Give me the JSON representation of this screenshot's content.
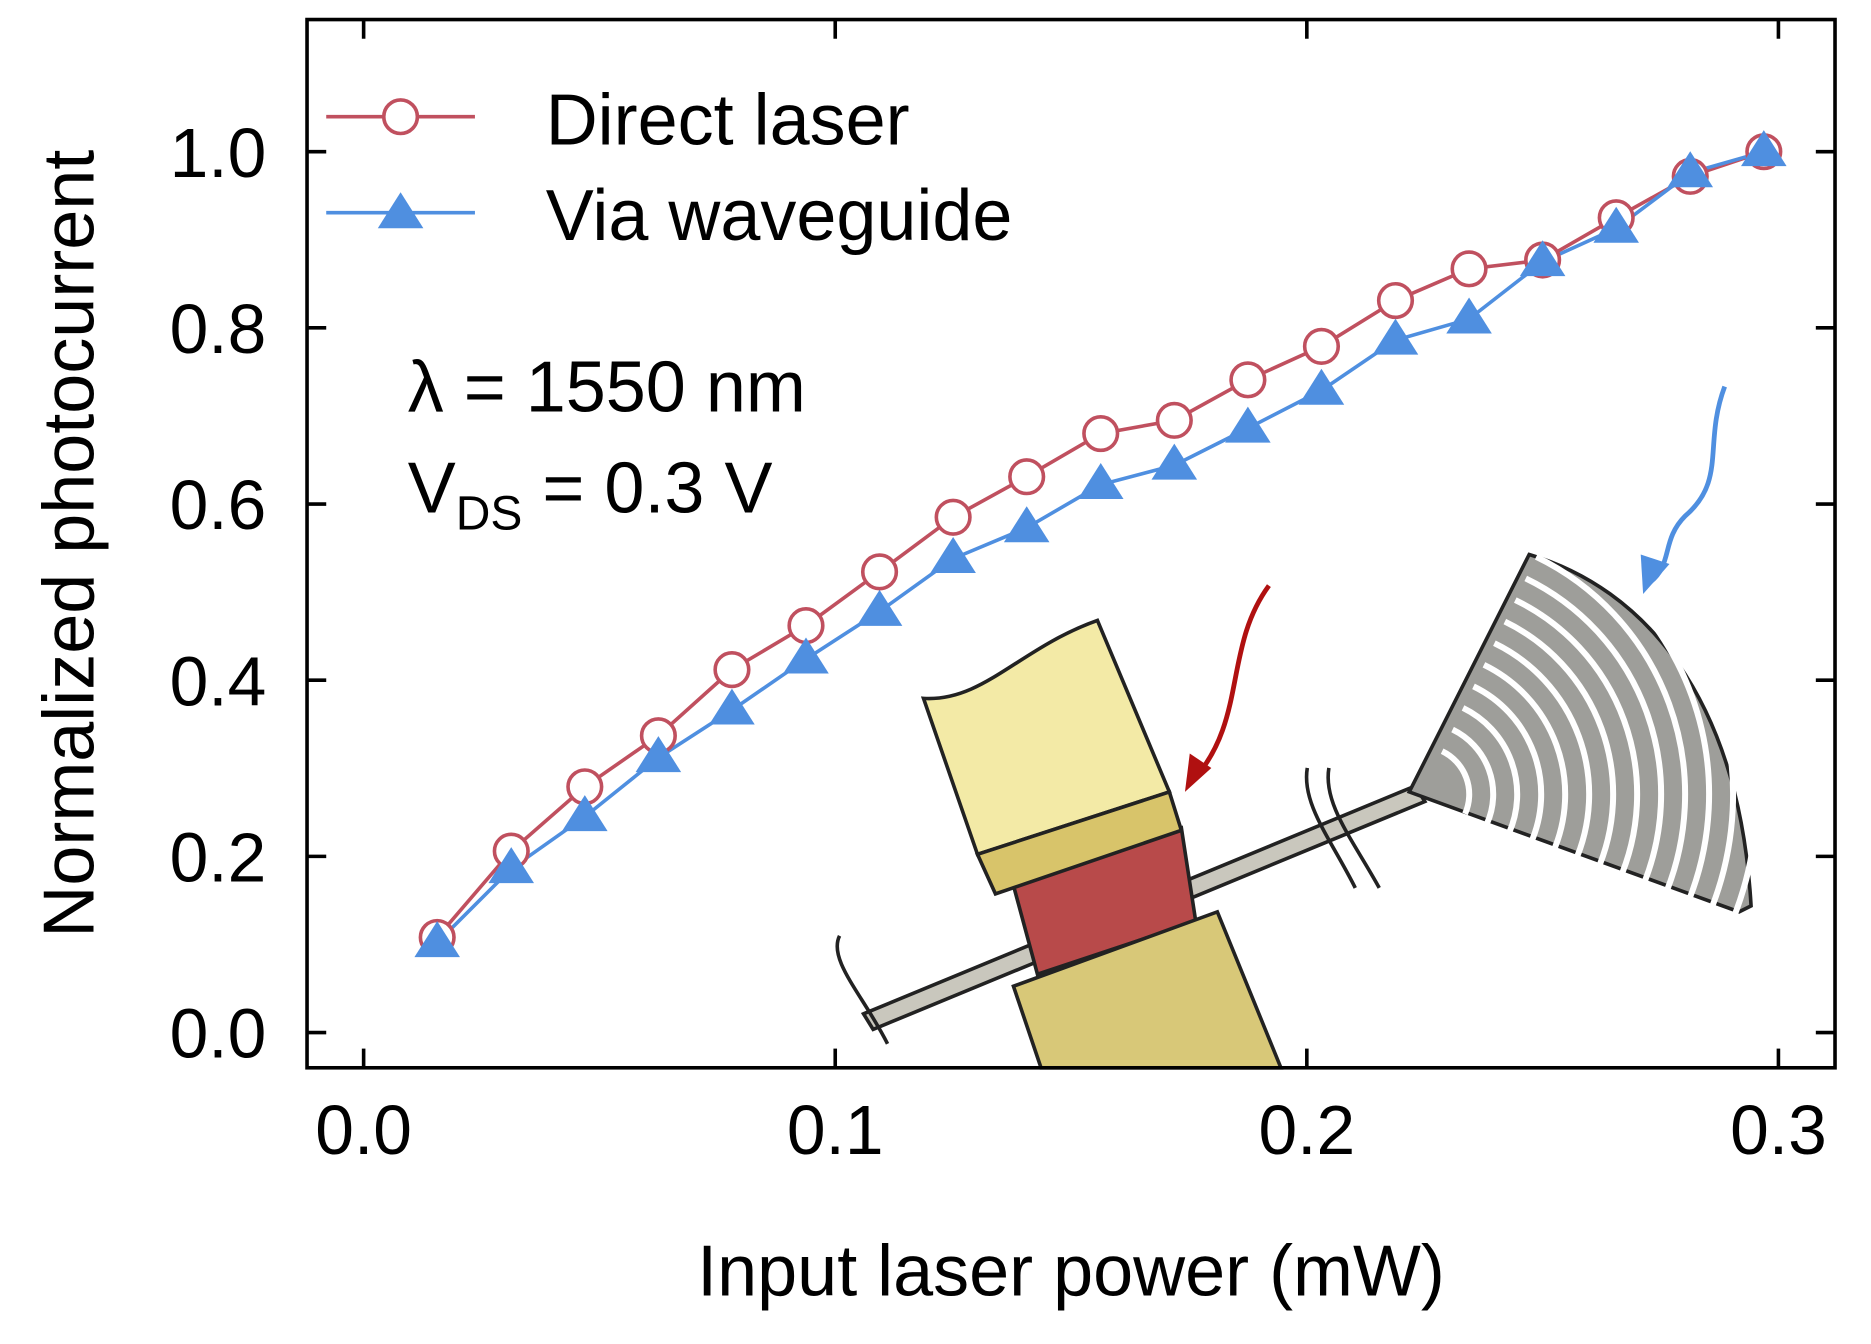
{
  "chart_data": {
    "type": "line",
    "title": "",
    "xlabel": "Input laser power (mW)",
    "ylabel": "Normalized photocurrent",
    "xlim": [
      -0.012,
      0.312
    ],
    "ylim": [
      -0.04,
      1.15
    ],
    "xticks": [
      "0.0",
      "0.1",
      "0.2",
      "0.3"
    ],
    "xtick_values": [
      0.0,
      0.1,
      0.2,
      0.3
    ],
    "yticks": [
      "0.0",
      "0.2",
      "0.4",
      "0.6",
      "0.8",
      "1.0"
    ],
    "ytick_values": [
      0.0,
      0.2,
      0.4,
      0.6,
      0.8,
      1.0
    ],
    "grid": false,
    "legend_position": "top-left",
    "x": [
      0.0156,
      0.0313,
      0.0469,
      0.0625,
      0.0781,
      0.0938,
      0.1094,
      0.125,
      0.1406,
      0.1563,
      0.1719,
      0.1875,
      0.2031,
      0.2188,
      0.2344,
      0.25,
      0.2656,
      0.2813,
      0.2969
    ],
    "series": [
      {
        "name": "Direct laser",
        "color": "#c0505f",
        "marker": "open-circle",
        "values": [
          0.108,
          0.206,
          0.279,
          0.337,
          0.412,
          0.462,
          0.523,
          0.585,
          0.631,
          0.68,
          0.695,
          0.741,
          0.779,
          0.831,
          0.867,
          0.877,
          0.925,
          0.972,
          1.0
        ]
      },
      {
        "name": "Via waveguide",
        "color": "#4f8fe0",
        "marker": "filled-triangle",
        "values": [
          0.102,
          0.186,
          0.245,
          0.312,
          0.366,
          0.424,
          0.478,
          0.538,
          0.573,
          0.622,
          0.644,
          0.686,
          0.729,
          0.786,
          0.81,
          0.875,
          0.913,
          0.976,
          1.0
        ]
      }
    ],
    "annotations": {
      "wavelength": "λ = 1550 nm",
      "bias_prefix": "V",
      "bias_subscript": "DS",
      "bias_value": " = 0.3 V"
    }
  }
}
